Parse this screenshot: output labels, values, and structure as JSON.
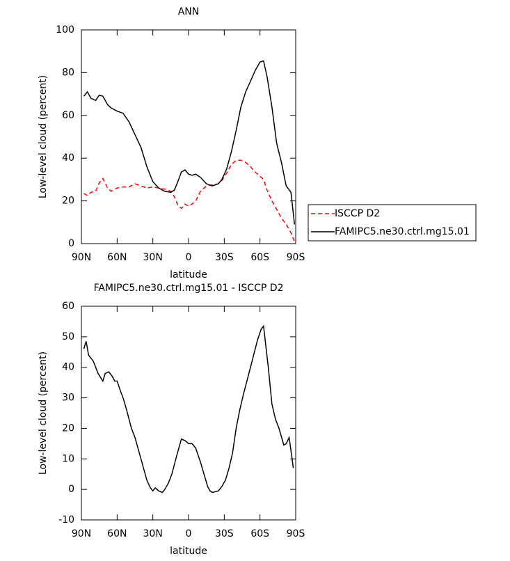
{
  "chart_data": [
    {
      "type": "line",
      "title": "ANN",
      "xlabel": "latitude",
      "ylabel": "Low-level cloud (percent)",
      "x": [
        88,
        85,
        82,
        78,
        75,
        72,
        68,
        65,
        60,
        55,
        50,
        45,
        40,
        35,
        30,
        25,
        20,
        15,
        12,
        9,
        6,
        3,
        0,
        -3,
        -6,
        -10,
        -15,
        -20,
        -25,
        -28,
        -32,
        -36,
        -40,
        -44,
        -48,
        -52,
        -56,
        -60,
        -63,
        -66,
        -70,
        -74,
        -78,
        -82,
        -86,
        -89
      ],
      "series": [
        {
          "name": "ISCCP D2",
          "color": "#ff0000",
          "linestyle": "dashed",
          "values": [
            23.5,
            22.5,
            24,
            24.5,
            28.5,
            30.5,
            26,
            24.5,
            26,
            26.5,
            26.5,
            28,
            27,
            26,
            26.5,
            26,
            25.5,
            24.5,
            22,
            18,
            16.5,
            18.5,
            17.5,
            18.5,
            20,
            24.5,
            27,
            27.5,
            28,
            29.5,
            33,
            37,
            39,
            39,
            38,
            36,
            33.5,
            31.5,
            30,
            25,
            20,
            16,
            12,
            9,
            5,
            1
          ]
        },
        {
          "name": "FAMIPC5.ne30.ctrl.mg15.01",
          "color": "#000000",
          "linestyle": "solid",
          "values": [
            69,
            71,
            68,
            67,
            69.5,
            69,
            65,
            63.5,
            62,
            61,
            57,
            51,
            45,
            36,
            29,
            26,
            24.5,
            24,
            25,
            29,
            33.5,
            34.5,
            32.5,
            32,
            32.5,
            31,
            28,
            27,
            28,
            30,
            35,
            43,
            53,
            64,
            71,
            76,
            81,
            85,
            85.5,
            78,
            64,
            47,
            38,
            27,
            24,
            9
          ]
        }
      ],
      "xlim": [
        90,
        -90
      ],
      "xticks": [
        {
          "value": 90,
          "label": "90N"
        },
        {
          "value": 60,
          "label": "60N"
        },
        {
          "value": 30,
          "label": "30N"
        },
        0,
        {
          "value": -30,
          "label": "30S"
        },
        {
          "value": -60,
          "label": "60S"
        },
        {
          "value": -90,
          "label": "90S"
        }
      ],
      "ylim": [
        0,
        100
      ],
      "yticks": [
        0,
        20,
        40,
        60,
        80,
        100
      ],
      "legend": "right"
    },
    {
      "type": "line",
      "title": "FAMIPC5.ne30.ctrl.mg15.01 - ISCCP D2",
      "xlabel": "latitude",
      "ylabel": "Low-level cloud (percent)",
      "x": [
        88,
        86,
        84,
        80,
        76,
        72,
        70,
        67,
        64,
        62,
        60,
        57,
        55,
        52,
        48,
        45,
        40,
        35,
        32,
        30,
        28,
        25,
        22,
        20,
        17,
        14,
        10,
        6,
        3,
        0,
        -3,
        -6,
        -10,
        -13,
        -16,
        -18,
        -20,
        -25,
        -28,
        -31,
        -34,
        -37,
        -40,
        -43,
        -46,
        -50,
        -54,
        -58,
        -61,
        -63,
        -67,
        -70,
        -73,
        -76,
        -80,
        -82,
        -84.5,
        -88
      ],
      "series": [
        {
          "name": "FAMIPC5.ne30.ctrl.mg15.01 - ISCCP D2",
          "color": "#000000",
          "linestyle": "solid",
          "values": [
            46,
            48.5,
            44,
            42,
            38,
            35.5,
            38,
            38.5,
            37,
            35.5,
            35.5,
            32,
            30,
            26,
            20,
            17,
            10,
            3,
            0.5,
            -0.5,
            0.5,
            -0.5,
            -1,
            0,
            2,
            5,
            11,
            16.5,
            16,
            15,
            15,
            13.5,
            9,
            5,
            1,
            -0.5,
            -1,
            -0.5,
            1,
            3,
            7,
            12,
            20,
            26,
            31,
            37,
            43,
            49,
            52.5,
            53.5,
            40,
            28,
            23,
            20,
            14.5,
            15,
            17,
            7
          ]
        }
      ],
      "xlim": [
        90,
        -90
      ],
      "xticks": [
        {
          "value": 90,
          "label": "90N"
        },
        {
          "value": 60,
          "label": "60N"
        },
        {
          "value": 30,
          "label": "30N"
        },
        0,
        {
          "value": -30,
          "label": "30S"
        },
        {
          "value": -60,
          "label": "60S"
        },
        {
          "value": -90,
          "label": "90S"
        }
      ],
      "ylim": [
        -10,
        60
      ],
      "yticks": [
        -10,
        0,
        10,
        20,
        30,
        40,
        50,
        60
      ]
    }
  ]
}
